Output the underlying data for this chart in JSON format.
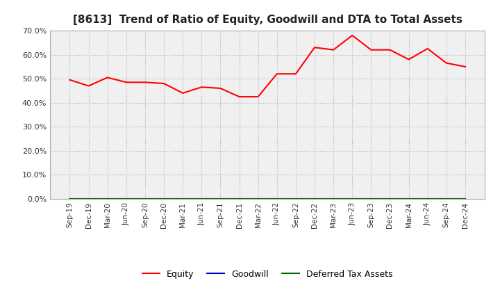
{
  "title": "[8613]  Trend of Ratio of Equity, Goodwill and DTA to Total Assets",
  "x_labels": [
    "Sep-19",
    "Dec-19",
    "Mar-20",
    "Jun-20",
    "Sep-20",
    "Dec-20",
    "Mar-21",
    "Jun-21",
    "Sep-21",
    "Dec-21",
    "Mar-22",
    "Jun-22",
    "Sep-22",
    "Dec-22",
    "Mar-23",
    "Jun-23",
    "Sep-23",
    "Dec-23",
    "Mar-24",
    "Jun-24",
    "Sep-24",
    "Dec-24"
  ],
  "equity": [
    49.5,
    47.0,
    50.5,
    48.5,
    48.5,
    48.0,
    44.0,
    46.5,
    46.0,
    42.5,
    42.5,
    52.0,
    52.0,
    63.0,
    62.0,
    68.0,
    62.0,
    62.0,
    58.0,
    62.5,
    56.5,
    55.0
  ],
  "goodwill": [
    0.0,
    0.0,
    0.0,
    0.0,
    0.0,
    0.0,
    0.0,
    0.0,
    0.0,
    0.0,
    0.0,
    0.0,
    0.0,
    0.0,
    0.0,
    0.0,
    0.0,
    0.0,
    0.0,
    0.0,
    0.0,
    0.0
  ],
  "dta": [
    0.0,
    0.0,
    0.0,
    0.0,
    0.0,
    0.0,
    0.0,
    0.0,
    0.0,
    0.0,
    0.0,
    0.0,
    0.0,
    0.0,
    0.0,
    0.0,
    0.0,
    0.0,
    0.0,
    0.0,
    0.0,
    0.0
  ],
  "equity_color": "#ff0000",
  "goodwill_color": "#0000cc",
  "dta_color": "#006600",
  "ylim": [
    0,
    70
  ],
  "yticks": [
    0,
    10,
    20,
    30,
    40,
    50,
    60,
    70
  ],
  "background_color": "#ffffff",
  "plot_bg_color": "#f0f0f0",
  "grid_color": "#b0b0b0",
  "title_fontsize": 11,
  "legend_labels": [
    "Equity",
    "Goodwill",
    "Deferred Tax Assets"
  ]
}
